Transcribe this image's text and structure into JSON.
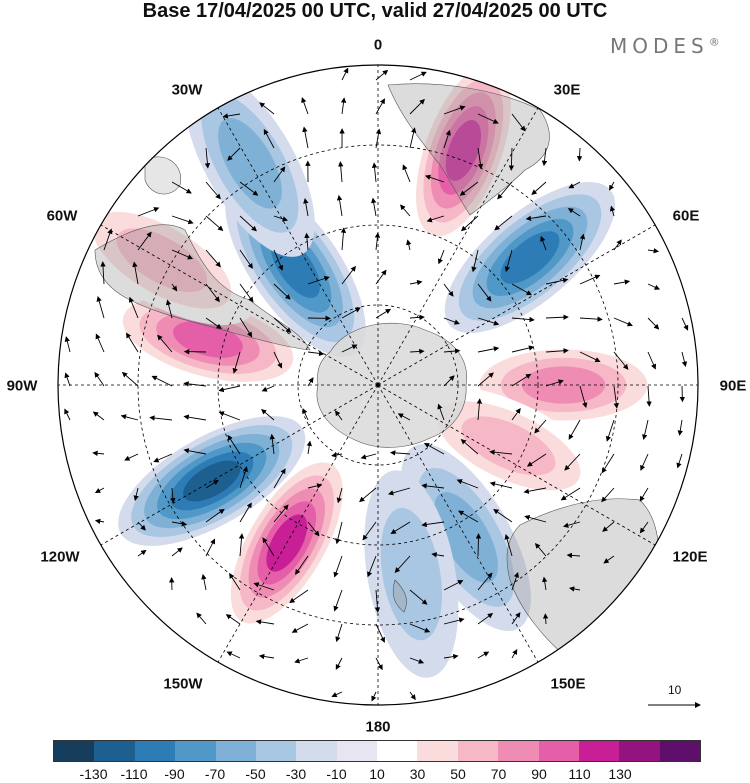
{
  "title": "Base 17/04/2025 00 UTC, valid 27/04/2025 00 UTC",
  "brand": "MODES",
  "brand_mark": "®",
  "lon_labels": {
    "l0": "0",
    "l30e": "30E",
    "l60e": "60E",
    "l90e": "90E",
    "l120e": "120E",
    "l150e": "150E",
    "l180": "180",
    "l150w": "150W",
    "l120w": "120W",
    "l90w": "90W",
    "l60w": "60W",
    "l30w": "30W"
  },
  "reference_vector_label": "10",
  "colorbar": {
    "ticks": [
      "-130",
      "-110",
      "-90",
      "-70",
      "-50",
      "-30",
      "-10",
      "10",
      "30",
      "50",
      "70",
      "90",
      "110",
      "130"
    ],
    "colors": [
      "#163d5c",
      "#1d5f8f",
      "#2e7cb5",
      "#4f98c7",
      "#7fb0d6",
      "#a9c6e3",
      "#d3dbec",
      "#e7e5f1",
      "#ffffff",
      "#fbdcdd",
      "#f6b7c6",
      "#ef8cb3",
      "#e55fa8",
      "#c81f96",
      "#93137f",
      "#5e0f6b"
    ]
  },
  "anomaly_centers": [
    {
      "lon_deg": 20,
      "colat": 0.78,
      "value": 120
    },
    {
      "lon_deg": 50,
      "colat": 0.62,
      "value": -100
    },
    {
      "lon_deg": 90,
      "colat": 0.58,
      "value": 70
    },
    {
      "lon_deg": 115,
      "colat": 0.45,
      "value": 60
    },
    {
      "lon_deg": 150,
      "colat": 0.55,
      "value": -60
    },
    {
      "lon_deg": 170,
      "colat": 0.6,
      "value": -40
    },
    {
      "lon_deg": 210,
      "colat": 0.57,
      "value": 110
    },
    {
      "lon_deg": 240,
      "colat": 0.6,
      "value": -120
    },
    {
      "lon_deg": 285,
      "colat": 0.55,
      "value": 100
    },
    {
      "lon_deg": 300,
      "colat": 0.78,
      "value": 60
    },
    {
      "lon_deg": 325,
      "colat": 0.45,
      "value": -90
    },
    {
      "lon_deg": 330,
      "colat": 0.8,
      "value": -50
    }
  ],
  "colors": {
    "land": "#bdbdbd",
    "ocean": "#ffffff",
    "grid": "#000000",
    "vector": "#000000"
  }
}
